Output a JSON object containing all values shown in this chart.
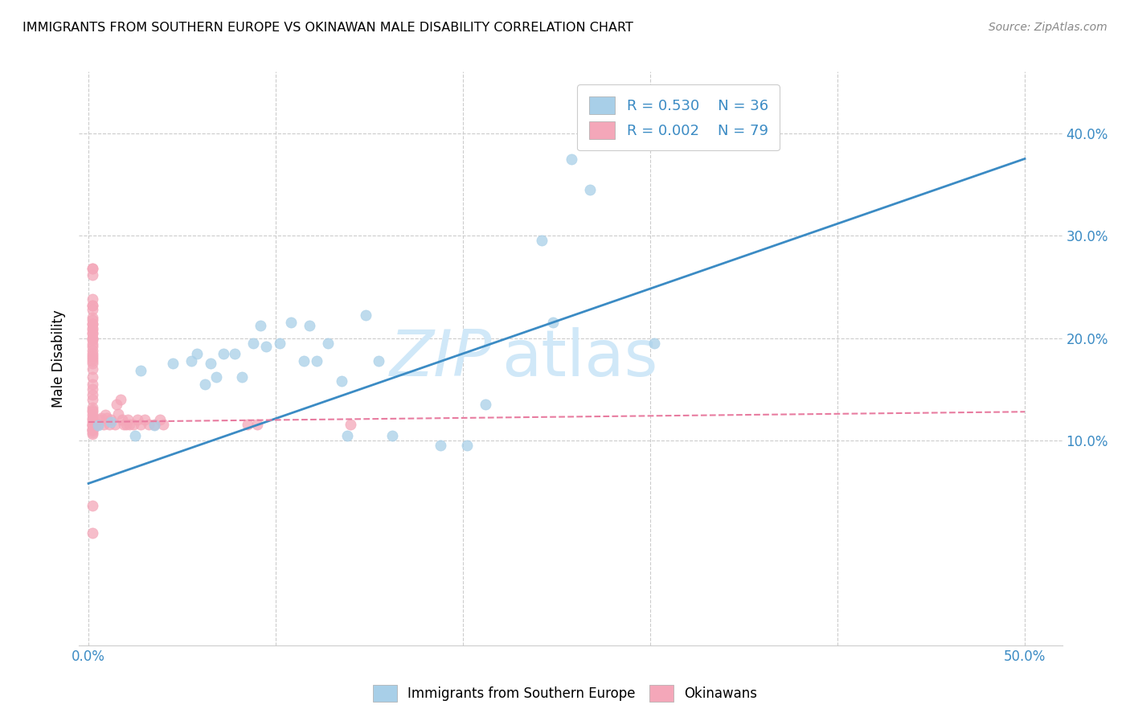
{
  "title": "IMMIGRANTS FROM SOUTHERN EUROPE VS OKINAWAN MALE DISABILITY CORRELATION CHART",
  "source": "Source: ZipAtlas.com",
  "ylabel": "Male Disability",
  "xlim": [
    -0.005,
    0.52
  ],
  "ylim": [
    -0.1,
    0.46
  ],
  "xticks": [
    0.0,
    0.1,
    0.2,
    0.3,
    0.4,
    0.5
  ],
  "xtick_labels_show": [
    "0.0%",
    "",
    "",
    "",
    "",
    "50.0%"
  ],
  "yticks_right": [
    0.1,
    0.2,
    0.3,
    0.4
  ],
  "ytick_labels_right": [
    "10.0%",
    "20.0%",
    "30.0%",
    "40.0%"
  ],
  "grid_yticks": [
    0.1,
    0.2,
    0.3,
    0.4
  ],
  "grid_xticks": [
    0.0,
    0.1,
    0.2,
    0.3,
    0.4,
    0.5
  ],
  "legend_r1": "R = 0.530",
  "legend_n1": "N = 36",
  "legend_r2": "R = 0.002",
  "legend_n2": "N = 79",
  "blue_color": "#a8cfe8",
  "pink_color": "#f4a7b9",
  "blue_line_color": "#3b8bc4",
  "pink_line_color": "#e87ca0",
  "tick_label_color": "#3b8bc4",
  "watermark_color": "#d0e8f8",
  "watermark": "ZIPatlas",
  "blue_scatter_x": [
    0.005,
    0.012,
    0.025,
    0.028,
    0.035,
    0.045,
    0.055,
    0.058,
    0.062,
    0.065,
    0.068,
    0.072,
    0.078,
    0.082,
    0.088,
    0.092,
    0.095,
    0.102,
    0.108,
    0.115,
    0.118,
    0.122,
    0.128,
    0.135,
    0.138,
    0.148,
    0.155,
    0.162,
    0.188,
    0.202,
    0.212,
    0.242,
    0.248,
    0.258,
    0.268,
    0.302
  ],
  "blue_scatter_y": [
    0.115,
    0.118,
    0.105,
    0.168,
    0.115,
    0.175,
    0.178,
    0.185,
    0.155,
    0.175,
    0.162,
    0.185,
    0.185,
    0.162,
    0.195,
    0.212,
    0.192,
    0.195,
    0.215,
    0.178,
    0.212,
    0.178,
    0.195,
    0.158,
    0.105,
    0.222,
    0.178,
    0.105,
    0.095,
    0.095,
    0.135,
    0.295,
    0.215,
    0.375,
    0.345,
    0.195
  ],
  "pink_scatter_x": [
    0.002,
    0.002,
    0.002,
    0.002,
    0.002,
    0.002,
    0.002,
    0.002,
    0.002,
    0.002,
    0.002,
    0.002,
    0.002,
    0.002,
    0.002,
    0.002,
    0.002,
    0.002,
    0.002,
    0.002,
    0.002,
    0.002,
    0.002,
    0.002,
    0.002,
    0.002,
    0.002,
    0.002,
    0.002,
    0.002,
    0.002,
    0.002,
    0.002,
    0.002,
    0.002,
    0.002,
    0.002,
    0.002,
    0.002,
    0.002,
    0.002,
    0.002,
    0.002,
    0.002,
    0.002,
    0.002,
    0.002,
    0.002,
    0.002,
    0.002,
    0.004,
    0.005,
    0.006,
    0.007,
    0.008,
    0.009,
    0.01,
    0.011,
    0.012,
    0.014,
    0.015,
    0.016,
    0.017,
    0.018,
    0.019,
    0.02,
    0.021,
    0.022,
    0.024,
    0.026,
    0.028,
    0.03,
    0.032,
    0.035,
    0.038,
    0.04,
    0.085,
    0.09,
    0.14
  ],
  "pink_scatter_y": [
    0.268,
    0.268,
    0.262,
    0.238,
    0.232,
    0.232,
    0.228,
    0.22,
    0.218,
    0.214,
    0.214,
    0.21,
    0.208,
    0.205,
    0.204,
    0.2,
    0.2,
    0.198,
    0.194,
    0.192,
    0.188,
    0.185,
    0.182,
    0.18,
    0.178,
    0.175,
    0.17,
    0.162,
    0.155,
    0.15,
    0.145,
    0.14,
    0.132,
    0.13,
    0.128,
    0.125,
    0.122,
    0.12,
    0.118,
    0.116,
    0.115,
    0.115,
    0.112,
    0.11,
    0.11,
    0.11,
    0.108,
    0.106,
    0.036,
    0.01,
    0.115,
    0.116,
    0.12,
    0.122,
    0.116,
    0.125,
    0.122,
    0.116,
    0.12,
    0.116,
    0.135,
    0.126,
    0.14,
    0.12,
    0.116,
    0.116,
    0.12,
    0.116,
    0.116,
    0.12,
    0.116,
    0.12,
    0.116,
    0.116,
    0.12,
    0.116,
    0.116,
    0.116,
    0.116
  ],
  "blue_trendline_x": [
    0.0,
    0.5
  ],
  "blue_trendline_y": [
    0.058,
    0.375
  ],
  "pink_trendline_x": [
    0.0,
    0.5
  ],
  "pink_trendline_y": [
    0.118,
    0.128
  ]
}
